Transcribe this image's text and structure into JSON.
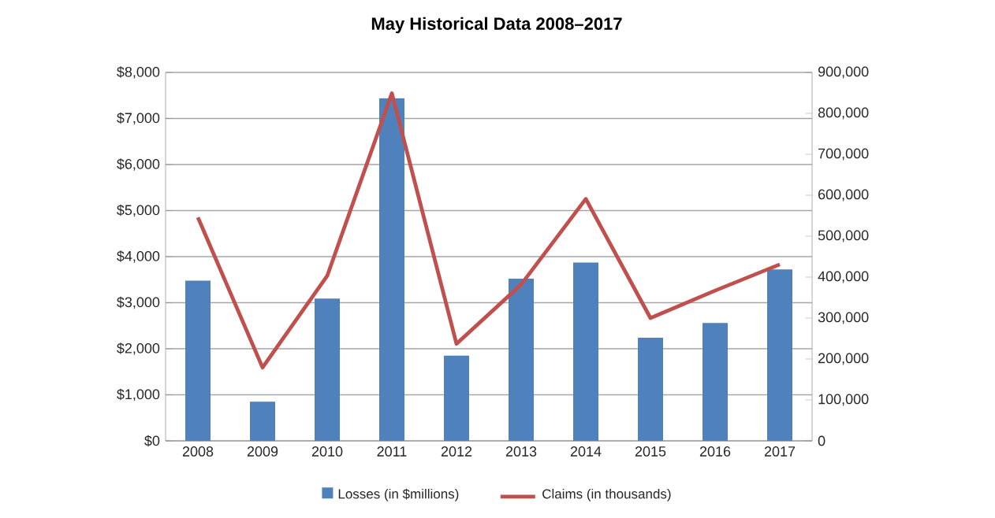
{
  "chart_data": {
    "type": "bar",
    "title": "May Historical Data 2008–2017",
    "categories": [
      "2008",
      "2009",
      "2010",
      "2011",
      "2012",
      "2013",
      "2014",
      "2015",
      "2016",
      "2017"
    ],
    "series": [
      {
        "name": "Losses (in $millions)",
        "color": "#4f81bd",
        "values": [
          3480,
          850,
          3090,
          7440,
          1850,
          3520,
          3870,
          2240,
          2560,
          3720
        ]
      },
      {
        "name": "Claims (in thousands)",
        "type": "line",
        "axis": "y2",
        "color": "#c0504d",
        "values": [
          546000,
          179000,
          403000,
          849000,
          237000,
          382000,
          591000,
          300000,
          367000,
          431000
        ]
      }
    ],
    "ylim": [
      0,
      8000
    ],
    "yticks": [
      {
        "value": 0,
        "label": "$0"
      },
      {
        "value": 1000,
        "label": "$1,000"
      },
      {
        "value": 2000,
        "label": "$2,000"
      },
      {
        "value": 3000,
        "label": "$3,000"
      },
      {
        "value": 4000,
        "label": "$4,000"
      },
      {
        "value": 5000,
        "label": "$5,000"
      },
      {
        "value": 6000,
        "label": "$6,000"
      },
      {
        "value": 7000,
        "label": "$7,000"
      },
      {
        "value": 8000,
        "label": "$8,000"
      }
    ],
    "y2lim": [
      0,
      900000
    ],
    "y2ticks": [
      {
        "value": 0,
        "label": "0"
      },
      {
        "value": 100000,
        "label": "100,000"
      },
      {
        "value": 200000,
        "label": "200,000"
      },
      {
        "value": 300000,
        "label": "300,000"
      },
      {
        "value": 400000,
        "label": "400,000"
      },
      {
        "value": 500000,
        "label": "500,000"
      },
      {
        "value": 600000,
        "label": "600,000"
      },
      {
        "value": 700000,
        "label": "700,000"
      },
      {
        "value": 800000,
        "label": "800,000"
      },
      {
        "value": 900000,
        "label": "900,000"
      }
    ],
    "grid": "y",
    "legend": "bottom"
  }
}
